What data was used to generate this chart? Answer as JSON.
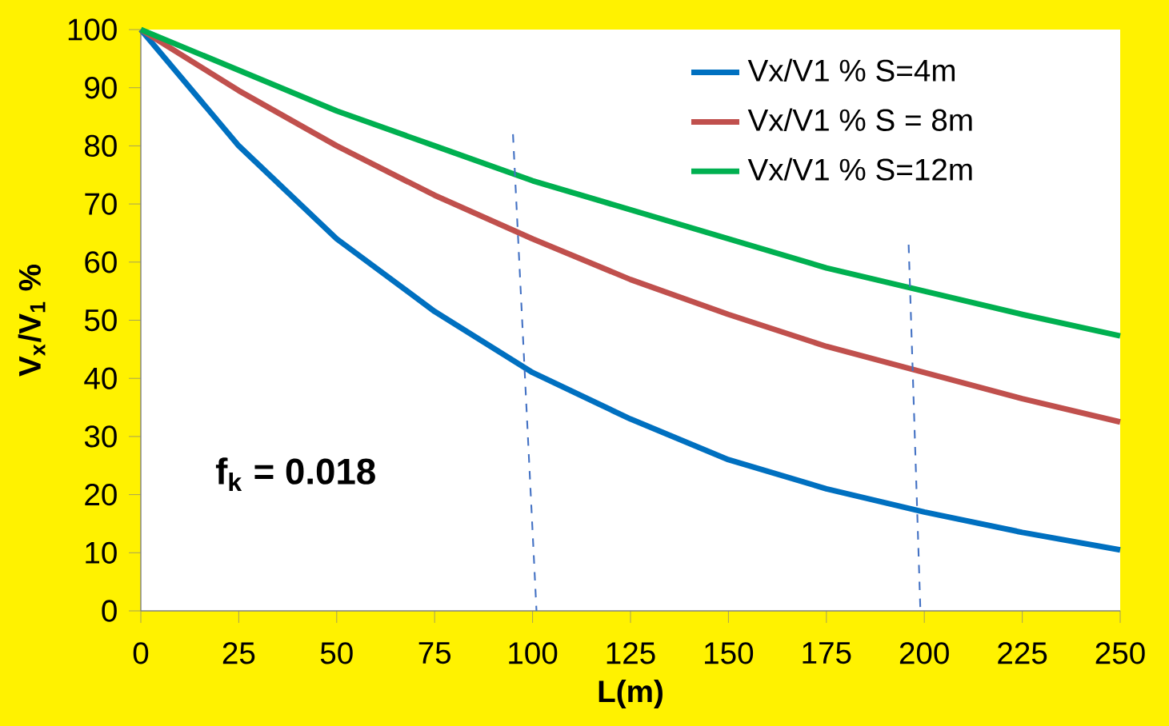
{
  "chart_data": {
    "type": "line",
    "xlabel": "L(m)",
    "ylabel": "V$_{x}$/V$_{1}$ %",
    "x": [
      0,
      25,
      50,
      75,
      100,
      125,
      150,
      175,
      200,
      225,
      250
    ],
    "series": [
      {
        "name": "Vx/V1 %  S=4m",
        "color": "#0070c0",
        "values": [
          100,
          80,
          64,
          51.5,
          41,
          33,
          26,
          21,
          17,
          13.5,
          10.5
        ]
      },
      {
        "name": "Vx/V1 % S = 8m",
        "color": "#c0504d",
        "values": [
          100,
          89.5,
          80,
          71.5,
          64,
          57,
          51,
          45.5,
          41,
          36.5,
          32.5
        ]
      },
      {
        "name": "Vx/V1 %  S=12m",
        "color": "#00b050",
        "values": [
          100,
          93,
          86,
          80,
          74,
          69,
          64,
          59,
          55,
          51,
          47.3
        ]
      },
      {
        "type": "line",
        "color": "#4472c4",
        "line_style": "dashed",
        "x": [
          95,
          101
        ],
        "values": [
          82,
          0
        ]
      },
      {
        "type": "line",
        "color": "#4472c4",
        "line_style": "dashed",
        "x": [
          196,
          199
        ],
        "values": [
          63,
          0
        ]
      }
    ],
    "xlim": [
      0,
      250
    ],
    "ylim": [
      0,
      100
    ],
    "xticks": [
      0,
      25,
      50,
      75,
      100,
      125,
      150,
      175,
      200,
      225,
      250
    ],
    "yticks": [
      0,
      10,
      20,
      30,
      40,
      50,
      60,
      70,
      80,
      90,
      100
    ],
    "annotations": [
      "f$_{k}$ = 0.018"
    ],
    "grid": false,
    "legend": "top right",
    "marker": "none",
    "line_style": "solid"
  }
}
